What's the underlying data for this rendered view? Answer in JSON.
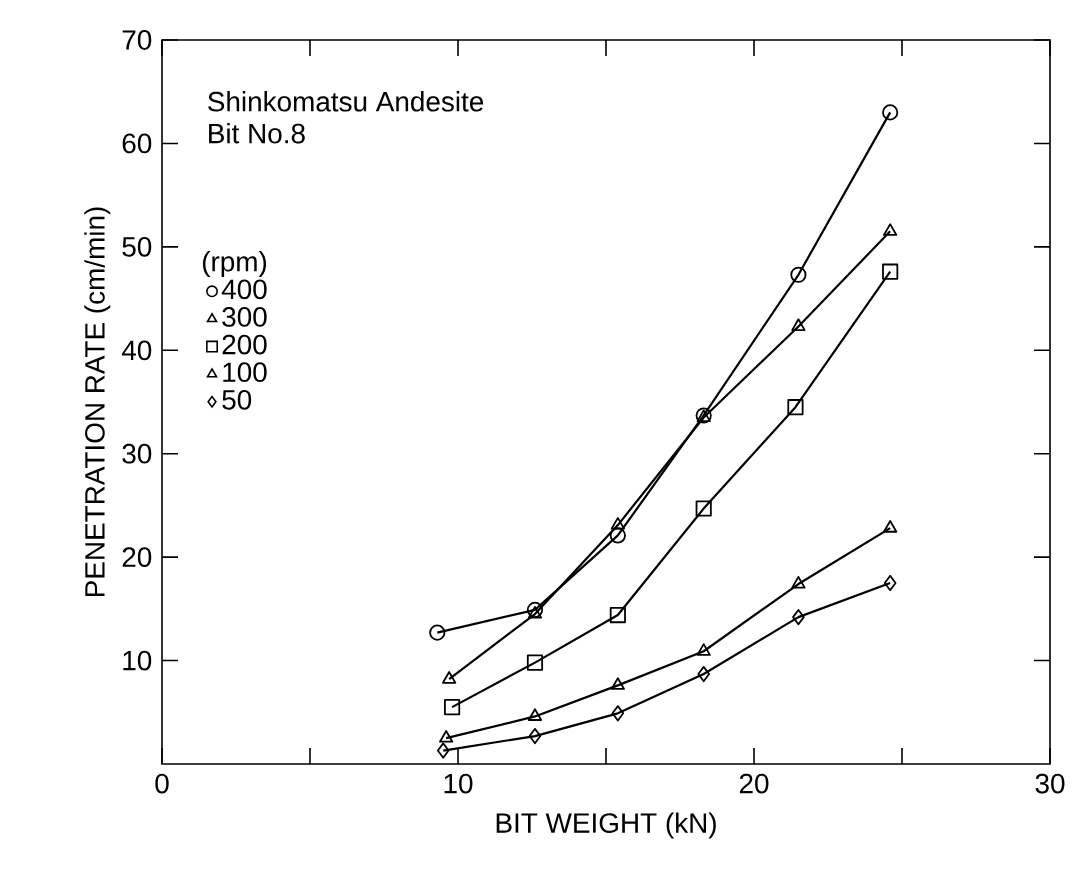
{
  "chart_data": {
    "type": "line",
    "xlabel": "BIT WEIGHT (kN)",
    "ylabel": "PENETRATION RATE (cm/min)",
    "annotations": [
      "Shinkomatsu Andesite",
      "Bit No.8"
    ],
    "legend_title": "(rpm)",
    "legend": "top left",
    "grid": false,
    "line_style": "solid",
    "xlim": [
      0,
      30
    ],
    "xticks": [
      0,
      {
        "value": 5,
        "label": null
      },
      10,
      {
        "value": 15,
        "label": null
      },
      20,
      {
        "value": 25,
        "label": null
      },
      30
    ],
    "ylim": [
      0,
      70
    ],
    "yticks": [
      10,
      20,
      30,
      40,
      50,
      60,
      70
    ],
    "series": [
      {
        "name": "400",
        "color": "#000000",
        "marker": "circle",
        "x": [
          9.3,
          12.6,
          15.4,
          18.3,
          21.5,
          24.6
        ],
        "values": [
          12.7,
          14.9,
          22.1,
          33.7,
          47.3,
          63.0
        ]
      },
      {
        "name": "300",
        "color": "#000000",
        "marker": "triangle",
        "x": [
          9.7,
          12.6,
          15.4,
          18.3,
          21.5,
          24.6
        ],
        "values": [
          8.2,
          14.5,
          23.1,
          33.5,
          42.3,
          51.5
        ]
      },
      {
        "name": "200",
        "color": "#000000",
        "marker": "square",
        "x": [
          9.8,
          12.6,
          15.4,
          18.3,
          21.4,
          24.6
        ],
        "values": [
          5.5,
          9.8,
          14.4,
          24.7,
          34.5,
          47.6
        ]
      },
      {
        "name": "100",
        "color": "#000000",
        "marker": "triangle-down",
        "x": [
          9.6,
          12.6,
          15.4,
          18.3,
          21.5,
          24.6
        ],
        "values": [
          2.5,
          4.6,
          7.6,
          10.9,
          17.4,
          22.8
        ]
      },
      {
        "name": "50",
        "color": "#000000",
        "marker": "diamond",
        "x": [
          9.5,
          12.6,
          15.4,
          18.3,
          21.5,
          24.6
        ],
        "values": [
          1.3,
          2.7,
          4.9,
          8.7,
          14.2,
          17.5
        ]
      }
    ]
  }
}
